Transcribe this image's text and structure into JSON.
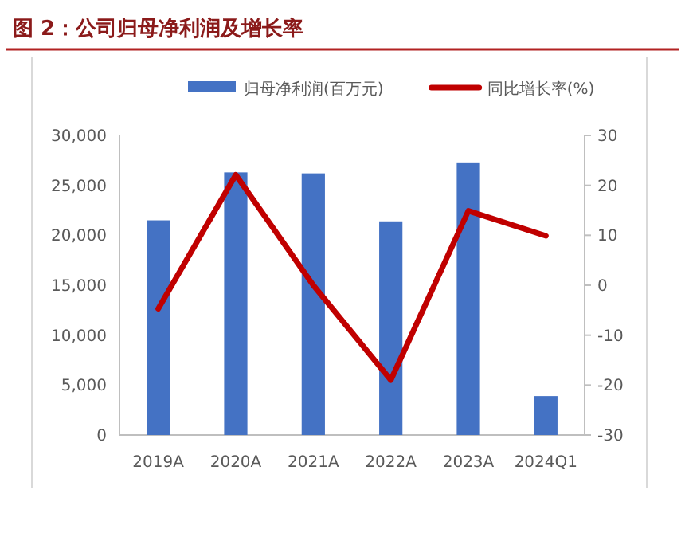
{
  "chart_data": {
    "type": "bar",
    "title": "图 2：公司归母净利润及增长率",
    "categories": [
      "2019A",
      "2020A",
      "2021A",
      "2022A",
      "2023A",
      "2024Q1"
    ],
    "series": [
      {
        "name": "归母净利润(百万元)",
        "color": "#4472c4",
        "values": [
          21500,
          26300,
          26200,
          21400,
          27300,
          3900
        ]
      },
      {
        "name": "同比增长率(%)",
        "type": "line",
        "axis": "y2",
        "color": "#c00000",
        "values": [
          -4.7,
          22.1,
          0,
          -19.0,
          14.9,
          9.9
        ]
      }
    ],
    "ylim": [
      0,
      30000
    ],
    "yticks": [
      {
        "value": 0,
        "label": "0"
      },
      {
        "value": 5000,
        "label": "5,000"
      },
      {
        "value": 10000,
        "label": "10,000"
      },
      {
        "value": 15000,
        "label": "15,000"
      },
      {
        "value": 20000,
        "label": "20,000"
      },
      {
        "value": 25000,
        "label": "25,000"
      },
      {
        "value": 30000,
        "label": "30,000"
      }
    ],
    "y2lim": [
      -30,
      30
    ],
    "y2ticks": [
      -30,
      -20,
      -10,
      0,
      10,
      20,
      30
    ],
    "legend": "top",
    "grid": false,
    "marker": "none",
    "line_style": "solid"
  }
}
